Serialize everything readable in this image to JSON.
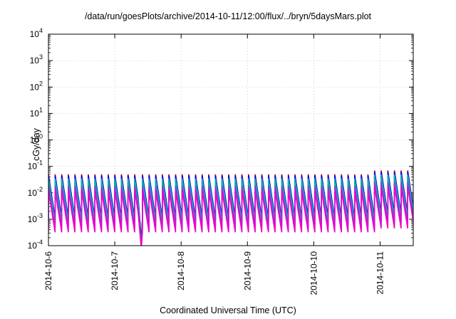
{
  "title": "/data/run/goesPlots/archive/2014-10-11/12:00/flux/../bryn/5daysMars.plot",
  "chart_data": {
    "type": "line",
    "title": "/data/run/goesPlots/archive/2014-10-11/12:00/flux/../bryn/5daysMars.plot",
    "xlabel": "Coordinated Universal Time (UTC)",
    "ylabel": "cGy/day",
    "yscale": "log",
    "ylim": [
      0.0001,
      10000
    ],
    "xlim": [
      "2014-10-06 00:00",
      "2014-10-11 12:00"
    ],
    "x_ticks": [
      "2014-10-6",
      "2014-10-7",
      "2014-10-8",
      "2014-10-9",
      "2014-10-10",
      "2014-10-11"
    ],
    "y_ticks": [
      {
        "base": "10",
        "exp": "-4"
      },
      {
        "base": "10",
        "exp": "-3"
      },
      {
        "base": "10",
        "exp": "-2"
      },
      {
        "base": "10",
        "exp": "-1"
      },
      {
        "base": "10",
        "exp": "0"
      },
      {
        "base": "10",
        "exp": "1"
      },
      {
        "base": "10",
        "exp": "2"
      },
      {
        "base": "10",
        "exp": "3"
      },
      {
        "base": "10",
        "exp": "4"
      }
    ],
    "grid": true,
    "legend": "none",
    "gap": {
      "start": "2014-10-07 08:30",
      "end": "2014-10-07 10:00",
      "value_top": 0.001,
      "value_bottom": 0.0001
    },
    "series": [
      {
        "color": "#dd0000",
        "peak": 0.05,
        "trough": 0.0009
      },
      {
        "color": "#0000dd",
        "peak": 0.045,
        "trough": 0.0011
      },
      {
        "color": "#00aadd",
        "peak": 0.035,
        "trough": 0.0008
      },
      {
        "color": "#00bb88",
        "peak": 0.025,
        "trough": 0.0006
      },
      {
        "color": "#9933dd",
        "peak": 0.018,
        "trough": 0.0005
      },
      {
        "color": "#ee00cc",
        "peak": 0.012,
        "trough": 0.00032
      }
    ],
    "cycle_hours": 2.4
  }
}
